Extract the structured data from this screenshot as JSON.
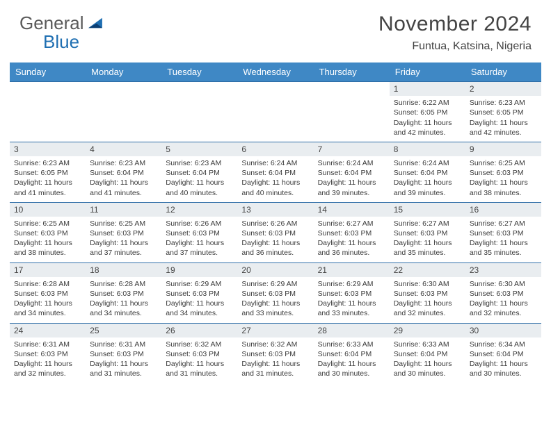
{
  "brand": {
    "word1": "General",
    "word2": "Blue"
  },
  "header": {
    "month_title": "November 2024",
    "location": "Funtua, Katsina, Nigeria"
  },
  "colors": {
    "header_bar": "#3f88c5",
    "row_divider": "#2f6ea8",
    "daynum_bg": "#e9edf0",
    "text": "#3a3a3a",
    "brand_blue": "#1f6fb2"
  },
  "days_of_week": [
    "Sunday",
    "Monday",
    "Tuesday",
    "Wednesday",
    "Thursday",
    "Friday",
    "Saturday"
  ],
  "leading_blanks": 5,
  "days": [
    {
      "n": "1",
      "sunrise": "Sunrise: 6:22 AM",
      "sunset": "Sunset: 6:05 PM",
      "daylight": "Daylight: 11 hours and 42 minutes."
    },
    {
      "n": "2",
      "sunrise": "Sunrise: 6:23 AM",
      "sunset": "Sunset: 6:05 PM",
      "daylight": "Daylight: 11 hours and 42 minutes."
    },
    {
      "n": "3",
      "sunrise": "Sunrise: 6:23 AM",
      "sunset": "Sunset: 6:05 PM",
      "daylight": "Daylight: 11 hours and 41 minutes."
    },
    {
      "n": "4",
      "sunrise": "Sunrise: 6:23 AM",
      "sunset": "Sunset: 6:04 PM",
      "daylight": "Daylight: 11 hours and 41 minutes."
    },
    {
      "n": "5",
      "sunrise": "Sunrise: 6:23 AM",
      "sunset": "Sunset: 6:04 PM",
      "daylight": "Daylight: 11 hours and 40 minutes."
    },
    {
      "n": "6",
      "sunrise": "Sunrise: 6:24 AM",
      "sunset": "Sunset: 6:04 PM",
      "daylight": "Daylight: 11 hours and 40 minutes."
    },
    {
      "n": "7",
      "sunrise": "Sunrise: 6:24 AM",
      "sunset": "Sunset: 6:04 PM",
      "daylight": "Daylight: 11 hours and 39 minutes."
    },
    {
      "n": "8",
      "sunrise": "Sunrise: 6:24 AM",
      "sunset": "Sunset: 6:04 PM",
      "daylight": "Daylight: 11 hours and 39 minutes."
    },
    {
      "n": "9",
      "sunrise": "Sunrise: 6:25 AM",
      "sunset": "Sunset: 6:03 PM",
      "daylight": "Daylight: 11 hours and 38 minutes."
    },
    {
      "n": "10",
      "sunrise": "Sunrise: 6:25 AM",
      "sunset": "Sunset: 6:03 PM",
      "daylight": "Daylight: 11 hours and 38 minutes."
    },
    {
      "n": "11",
      "sunrise": "Sunrise: 6:25 AM",
      "sunset": "Sunset: 6:03 PM",
      "daylight": "Daylight: 11 hours and 37 minutes."
    },
    {
      "n": "12",
      "sunrise": "Sunrise: 6:26 AM",
      "sunset": "Sunset: 6:03 PM",
      "daylight": "Daylight: 11 hours and 37 minutes."
    },
    {
      "n": "13",
      "sunrise": "Sunrise: 6:26 AM",
      "sunset": "Sunset: 6:03 PM",
      "daylight": "Daylight: 11 hours and 36 minutes."
    },
    {
      "n": "14",
      "sunrise": "Sunrise: 6:27 AM",
      "sunset": "Sunset: 6:03 PM",
      "daylight": "Daylight: 11 hours and 36 minutes."
    },
    {
      "n": "15",
      "sunrise": "Sunrise: 6:27 AM",
      "sunset": "Sunset: 6:03 PM",
      "daylight": "Daylight: 11 hours and 35 minutes."
    },
    {
      "n": "16",
      "sunrise": "Sunrise: 6:27 AM",
      "sunset": "Sunset: 6:03 PM",
      "daylight": "Daylight: 11 hours and 35 minutes."
    },
    {
      "n": "17",
      "sunrise": "Sunrise: 6:28 AM",
      "sunset": "Sunset: 6:03 PM",
      "daylight": "Daylight: 11 hours and 34 minutes."
    },
    {
      "n": "18",
      "sunrise": "Sunrise: 6:28 AM",
      "sunset": "Sunset: 6:03 PM",
      "daylight": "Daylight: 11 hours and 34 minutes."
    },
    {
      "n": "19",
      "sunrise": "Sunrise: 6:29 AM",
      "sunset": "Sunset: 6:03 PM",
      "daylight": "Daylight: 11 hours and 34 minutes."
    },
    {
      "n": "20",
      "sunrise": "Sunrise: 6:29 AM",
      "sunset": "Sunset: 6:03 PM",
      "daylight": "Daylight: 11 hours and 33 minutes."
    },
    {
      "n": "21",
      "sunrise": "Sunrise: 6:29 AM",
      "sunset": "Sunset: 6:03 PM",
      "daylight": "Daylight: 11 hours and 33 minutes."
    },
    {
      "n": "22",
      "sunrise": "Sunrise: 6:30 AM",
      "sunset": "Sunset: 6:03 PM",
      "daylight": "Daylight: 11 hours and 32 minutes."
    },
    {
      "n": "23",
      "sunrise": "Sunrise: 6:30 AM",
      "sunset": "Sunset: 6:03 PM",
      "daylight": "Daylight: 11 hours and 32 minutes."
    },
    {
      "n": "24",
      "sunrise": "Sunrise: 6:31 AM",
      "sunset": "Sunset: 6:03 PM",
      "daylight": "Daylight: 11 hours and 32 minutes."
    },
    {
      "n": "25",
      "sunrise": "Sunrise: 6:31 AM",
      "sunset": "Sunset: 6:03 PM",
      "daylight": "Daylight: 11 hours and 31 minutes."
    },
    {
      "n": "26",
      "sunrise": "Sunrise: 6:32 AM",
      "sunset": "Sunset: 6:03 PM",
      "daylight": "Daylight: 11 hours and 31 minutes."
    },
    {
      "n": "27",
      "sunrise": "Sunrise: 6:32 AM",
      "sunset": "Sunset: 6:03 PM",
      "daylight": "Daylight: 11 hours and 31 minutes."
    },
    {
      "n": "28",
      "sunrise": "Sunrise: 6:33 AM",
      "sunset": "Sunset: 6:04 PM",
      "daylight": "Daylight: 11 hours and 30 minutes."
    },
    {
      "n": "29",
      "sunrise": "Sunrise: 6:33 AM",
      "sunset": "Sunset: 6:04 PM",
      "daylight": "Daylight: 11 hours and 30 minutes."
    },
    {
      "n": "30",
      "sunrise": "Sunrise: 6:34 AM",
      "sunset": "Sunset: 6:04 PM",
      "daylight": "Daylight: 11 hours and 30 minutes."
    }
  ]
}
